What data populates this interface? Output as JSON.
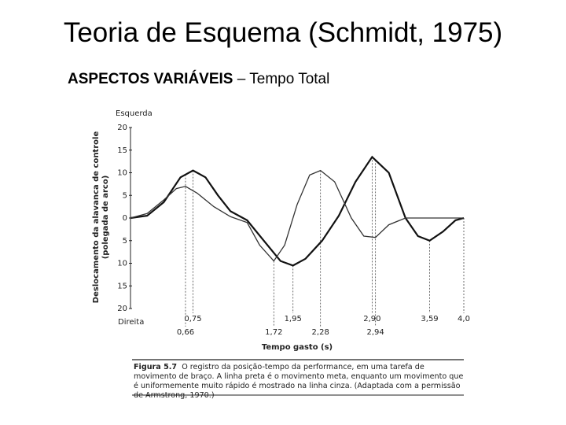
{
  "slide": {
    "title": "Teoria de Esquema (Schmidt, 1975)",
    "subtitle_bold": "ASPECTOS VARIÁVEIS",
    "subtitle_rest": "– Tempo Total"
  },
  "chart_data": {
    "type": "line",
    "ylabel": [
      "Deslocamento da alavanca de controle",
      "(polegada de arco)"
    ],
    "top_label": "Esquerda",
    "bottom_label": "Direita",
    "xlabel": "Tempo gasto (s)",
    "xlim": [
      0,
      4.0
    ],
    "ylim": [
      -20,
      20
    ],
    "yticks": [
      {
        "value": -20,
        "label": "20"
      },
      {
        "value": -15,
        "label": "15"
      },
      {
        "value": -10,
        "label": "10"
      },
      {
        "value": -5,
        "label": "5"
      },
      0,
      5,
      10,
      15,
      20
    ],
    "xticks_upper": [
      {
        "value": 0.75,
        "label": "0,75"
      },
      {
        "value": 1.95,
        "label": "1,95"
      },
      {
        "value": 2.9,
        "label": "2,90"
      },
      {
        "value": 3.59,
        "label": "3,59"
      },
      {
        "value": 4.0,
        "label": "4,0"
      }
    ],
    "xticks_lower": [
      {
        "value": 0.66,
        "label": "0,66"
      },
      {
        "value": 1.72,
        "label": "1,72"
      },
      {
        "value": 2.28,
        "label": "2,28"
      },
      {
        "value": 2.94,
        "label": "2,94"
      }
    ],
    "series": [
      {
        "color": "#111111",
        "width": 2.2,
        "x": [
          0,
          0.2,
          0.4,
          0.6,
          0.75,
          0.9,
          1.05,
          1.2,
          1.4,
          1.6,
          1.8,
          1.95,
          2.1,
          2.3,
          2.5,
          2.7,
          2.9,
          3.1,
          3.3,
          3.45,
          3.59,
          3.75,
          3.9,
          4.0
        ],
        "values": [
          0,
          0.5,
          3.5,
          9,
          10.5,
          9,
          5,
          1.5,
          -0.5,
          -5,
          -9.5,
          -10.5,
          -9,
          -5,
          0.5,
          8,
          13.5,
          10,
          0,
          -4,
          -5,
          -3,
          -0.5,
          0
        ]
      },
      {
        "color": "#333333",
        "width": 1.3,
        "x": [
          0,
          0.2,
          0.4,
          0.55,
          0.66,
          0.8,
          1.0,
          1.2,
          1.4,
          1.55,
          1.72,
          1.85,
          2.0,
          2.15,
          2.28,
          2.45,
          2.65,
          2.8,
          2.94,
          3.1,
          3.3,
          3.6,
          4.0
        ],
        "values": [
          0,
          1,
          4,
          6.5,
          7,
          5.5,
          2.5,
          0.3,
          -1,
          -6,
          -9.5,
          -6,
          3,
          9.5,
          10.5,
          8,
          0,
          -4,
          -4.3,
          -1.5,
          0,
          0,
          0
        ]
      }
    ],
    "caption_label": "Figura 5.7",
    "caption": "O registro da posição-tempo da performance, em uma tarefa de movimento de braço. A linha preta é o movimento meta, enquanto um movimento que é uniformemente muito rápido é mostrado na linha cinza. (Adaptada com a permissão de Armstrong, 1970.)"
  }
}
